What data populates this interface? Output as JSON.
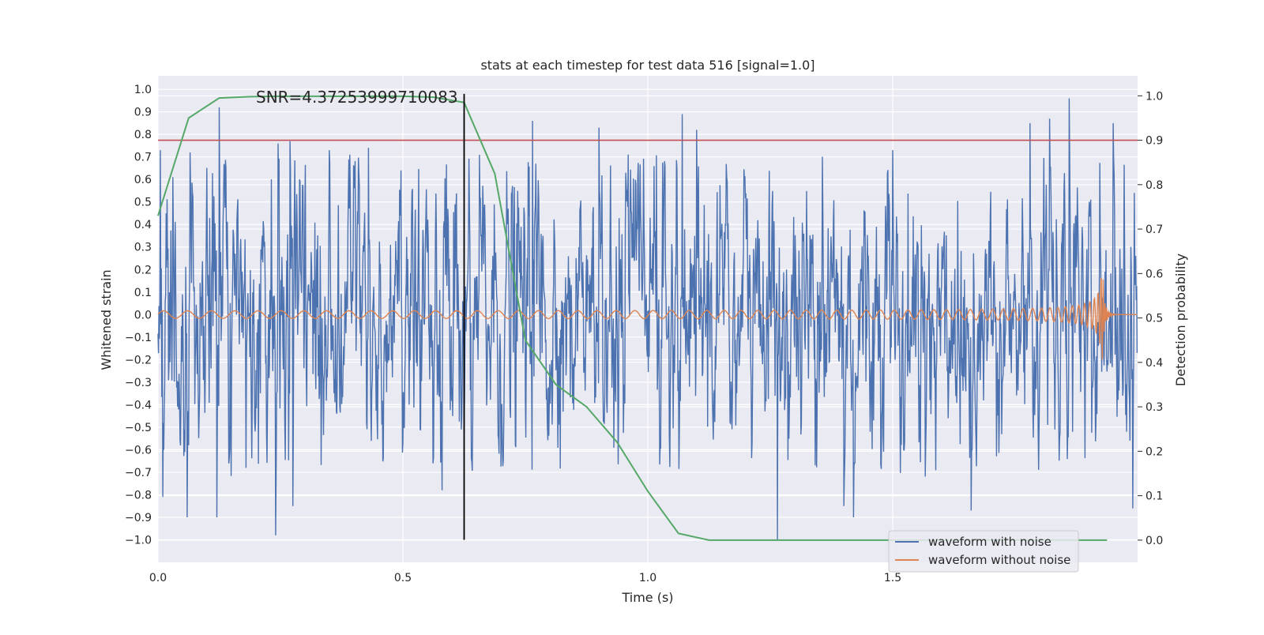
{
  "chart_data": {
    "type": "line",
    "title": "stats at each timestep for test data 516 [signal=1.0]",
    "xlabel": "Time (s)",
    "ylabel": "Whitened strain",
    "y2label": "Detection probability",
    "xlim": [
      0.0,
      2.0
    ],
    "ylim": [
      -1.1,
      1.06
    ],
    "y2lim": [
      -0.05,
      1.045
    ],
    "x_ticks": [
      0.0,
      0.5,
      1.0,
      1.5
    ],
    "x_tick_labels": [
      "0.0",
      "0.5",
      "1.0",
      "1.5"
    ],
    "y_ticks": [
      1.0,
      0.9,
      0.8,
      0.7,
      0.6,
      0.5,
      0.4,
      0.3,
      0.2,
      0.1,
      0.0,
      -0.1,
      -0.2,
      -0.3,
      -0.4,
      -0.5,
      -0.6,
      -0.7,
      -0.8,
      -0.9,
      -1.0
    ],
    "y_tick_labels": [
      "1.0",
      "0.9",
      "0.8",
      "0.7",
      "0.6",
      "0.5",
      "0.4",
      "0.3",
      "0.2",
      "0.1",
      "0.0",
      "−0.1",
      "−0.2",
      "−0.3",
      "−0.4",
      "−0.5",
      "−0.6",
      "−0.7",
      "−0.8",
      "−0.9",
      "−1.0"
    ],
    "y2_ticks": [
      1.0,
      0.9,
      0.8,
      0.7,
      0.6,
      0.5,
      0.4,
      0.3,
      0.2,
      0.1,
      0.0
    ],
    "y2_tick_labels": [
      "1.0",
      "0.9",
      "0.8",
      "0.7",
      "0.6",
      "0.5",
      "0.4",
      "0.3",
      "0.2",
      "0.1",
      "0.0"
    ],
    "grid": true,
    "legend_placement": "bottom-right",
    "annotation": "SNR=4.37253999710083",
    "annotation_x": 0.2,
    "annotation_y": 0.94,
    "vertical_marker_x": 0.625,
    "threshold_y2": 0.9,
    "series": [
      {
        "name": "waveform with noise",
        "color": "#4c72b0",
        "axis": "left",
        "description_free": true,
        "sample_rate": 1024,
        "duration": 2.0,
        "amplitude_spike_points": [
          [
            0.005,
            0.73
          ],
          [
            0.03,
            0.61
          ],
          [
            0.065,
            0.72
          ],
          [
            0.125,
            0.92
          ],
          [
            0.24,
            -0.98
          ],
          [
            0.245,
            0.76
          ],
          [
            0.27,
            0.77
          ],
          [
            0.275,
            -0.85
          ],
          [
            0.35,
            0.73
          ],
          [
            0.43,
            0.74
          ],
          [
            0.58,
            -0.78
          ],
          [
            0.64,
            -0.64
          ],
          [
            0.765,
            0.86
          ],
          [
            0.9,
            0.83
          ],
          [
            1.07,
            0.89
          ],
          [
            1.265,
            -1.0
          ],
          [
            1.4,
            -0.85
          ],
          [
            1.42,
            -0.9
          ],
          [
            1.66,
            -0.87
          ],
          [
            1.78,
            0.85
          ],
          [
            1.82,
            0.87
          ],
          [
            1.86,
            0.96
          ],
          [
            1.95,
            0.85
          ],
          [
            1.99,
            -0.86
          ],
          [
            0.12,
            -0.9
          ],
          [
            0.06,
            -0.9
          ],
          [
            0.01,
            -0.81
          ],
          [
            1.1,
            0.82
          ],
          [
            1.5,
            0.73
          ]
        ]
      },
      {
        "name": "waveform without noise",
        "color": "#dd8452",
        "axis": "left",
        "chirp_start_freq_hz": 20,
        "chirp_merger_time": 1.93,
        "chirp_peak_amplitude": 0.2,
        "chirp_base_amplitude": 0.015
      },
      {
        "name": "",
        "color": "#55a868",
        "axis": "right",
        "x": [
          0.0,
          0.0625,
          0.125,
          0.1875,
          0.25,
          0.3125,
          0.375,
          0.4375,
          0.5,
          0.5625,
          0.625,
          0.6875,
          0.75,
          0.8125,
          0.875,
          0.9375,
          1.0,
          1.0625,
          1.125,
          1.1875,
          1.25,
          1.3125,
          1.375,
          1.4375,
          1.5,
          1.5625,
          1.625,
          1.6875,
          1.75,
          1.8125,
          1.875,
          1.9375
        ],
        "values": [
          0.73,
          0.95,
          0.995,
          0.998,
          0.999,
          0.999,
          0.999,
          0.999,
          0.999,
          0.997,
          0.985,
          0.825,
          0.45,
          0.35,
          0.3,
          0.22,
          0.11,
          0.015,
          0.0,
          0.0,
          0.0,
          0.0,
          0.0,
          0.0,
          0.0,
          0.0,
          0.0,
          0.0,
          0.0,
          0.0,
          0.0,
          0.0
        ]
      }
    ]
  },
  "colors": {
    "plot_background": "#eaeaf2",
    "grid": "#ffffff",
    "threshold_line": "#c44e52",
    "marker_line": "#000000"
  }
}
